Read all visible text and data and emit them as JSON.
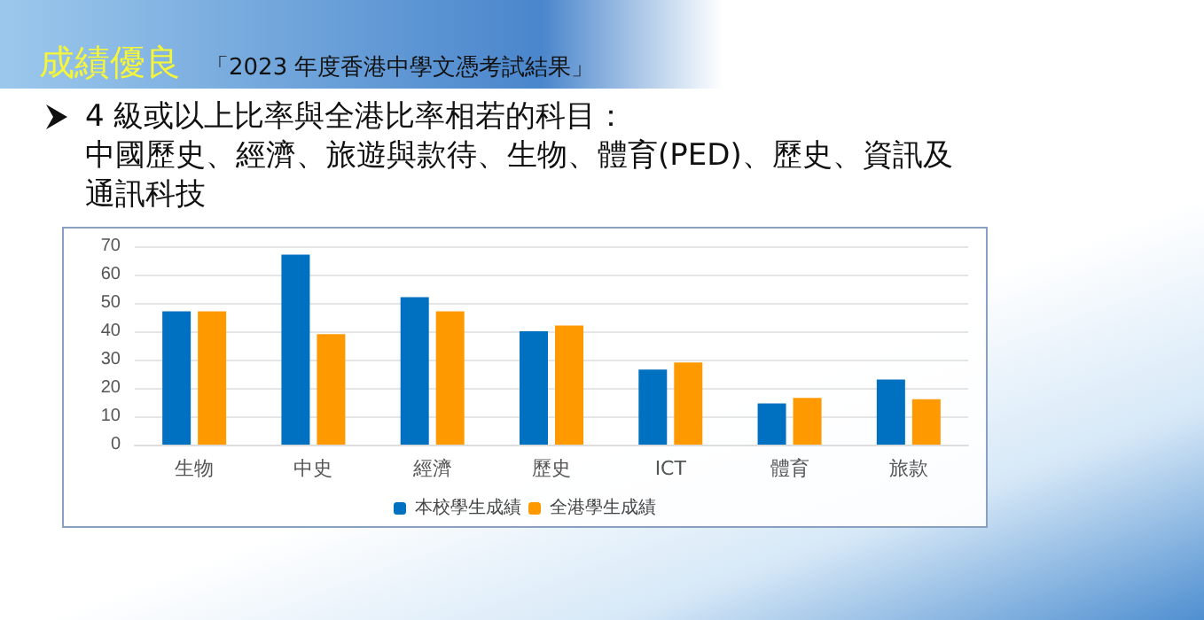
{
  "chart_data": {
    "type": "bar",
    "title": "成績優良",
    "subtitle": "「2023 年度香港中學文憑考試結果」",
    "annotations": [
      "4 級或以上比率與全港比率相若的科目：",
      "中國歷史、經濟、旅遊與款待、生物、體育(PED)、歷史、資訊及通訊科技"
    ],
    "categories": [
      "生物",
      "中史",
      "經濟",
      "歷史",
      "ICT",
      "體育",
      "旅款"
    ],
    "series": [
      {
        "name": "本校學生成績",
        "color": "#0070c0",
        "values": [
          47,
          67,
          52,
          40,
          26.5,
          14.5,
          23
        ]
      },
      {
        "name": "全港學生成績",
        "color": "#ff9900",
        "values": [
          47,
          39,
          47,
          42,
          29,
          16.5,
          16
        ]
      }
    ],
    "ylim": [
      0,
      70
    ],
    "yticks": [
      0,
      10,
      20,
      30,
      40,
      50,
      60,
      70
    ],
    "grid": "y",
    "legend": "bottom"
  }
}
